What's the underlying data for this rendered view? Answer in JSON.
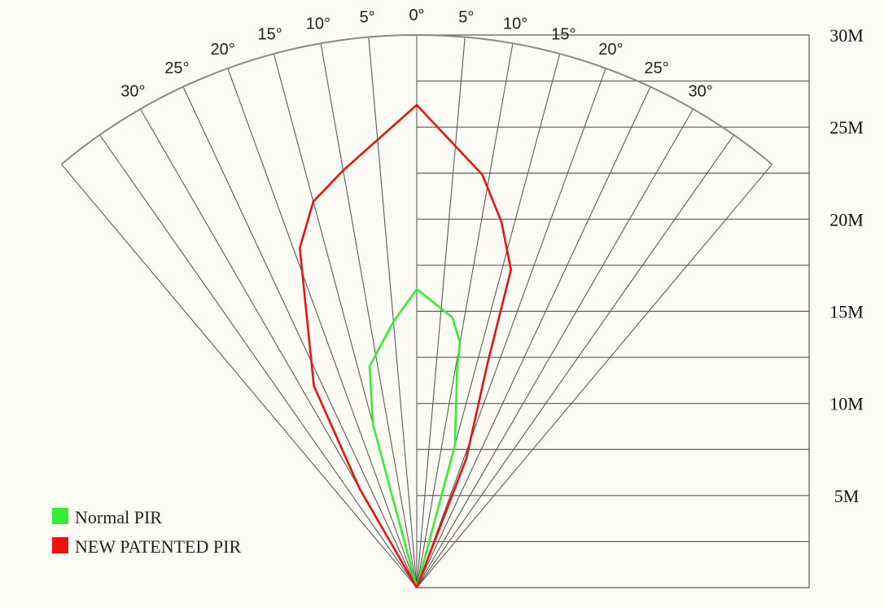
{
  "chart_data": {
    "type": "polar-coverage",
    "title": "",
    "angle_tick_labels": [
      "30°",
      "25°",
      "20°",
      "15°",
      "10°",
      "5°",
      "0°",
      "5°",
      "10°",
      "15°",
      "20°",
      "25°",
      "30°"
    ],
    "distance_labels": [
      "5M",
      "10M",
      "15M",
      "20M",
      "25M",
      "30M"
    ],
    "legend": [
      {
        "label": "Normal PIR",
        "color": "#33ee33"
      },
      {
        "label": "NEW PATENTED PIR",
        "color": "#ee1111"
      }
    ],
    "series": [
      {
        "name": "Normal PIR",
        "color": "#33ee33",
        "points": [
          {
            "angle": -15,
            "distance": 9.2
          },
          {
            "angle": -12,
            "distance": 12.3
          },
          {
            "angle": -5,
            "distance": 14.5
          },
          {
            "angle": 0,
            "distance": 16.2
          },
          {
            "angle": 7.5,
            "distance": 14.8
          },
          {
            "angle": 10,
            "distance": 13.5
          },
          {
            "angle": 10.5,
            "distance": 12.0
          },
          {
            "angle": 15,
            "distance": 8.0
          }
        ]
      },
      {
        "name": "NEW PATENTED PIR",
        "color": "#ee1111",
        "points": [
          {
            "angle": -30,
            "distance": 6.2
          },
          {
            "angle": -27,
            "distance": 12.3
          },
          {
            "angle": -19,
            "distance": 19.5
          },
          {
            "angle": -15,
            "distance": 21.7
          },
          {
            "angle": -10,
            "distance": 23.0
          },
          {
            "angle": 0,
            "distance": 26.2
          },
          {
            "angle": 9,
            "distance": 22.7
          },
          {
            "angle": 13,
            "distance": 20.4
          },
          {
            "angle": 16.5,
            "distance": 18.0
          },
          {
            "angle": 17.5,
            "distance": 12.8
          },
          {
            "angle": 21,
            "distance": 7.5
          }
        ]
      }
    ]
  }
}
